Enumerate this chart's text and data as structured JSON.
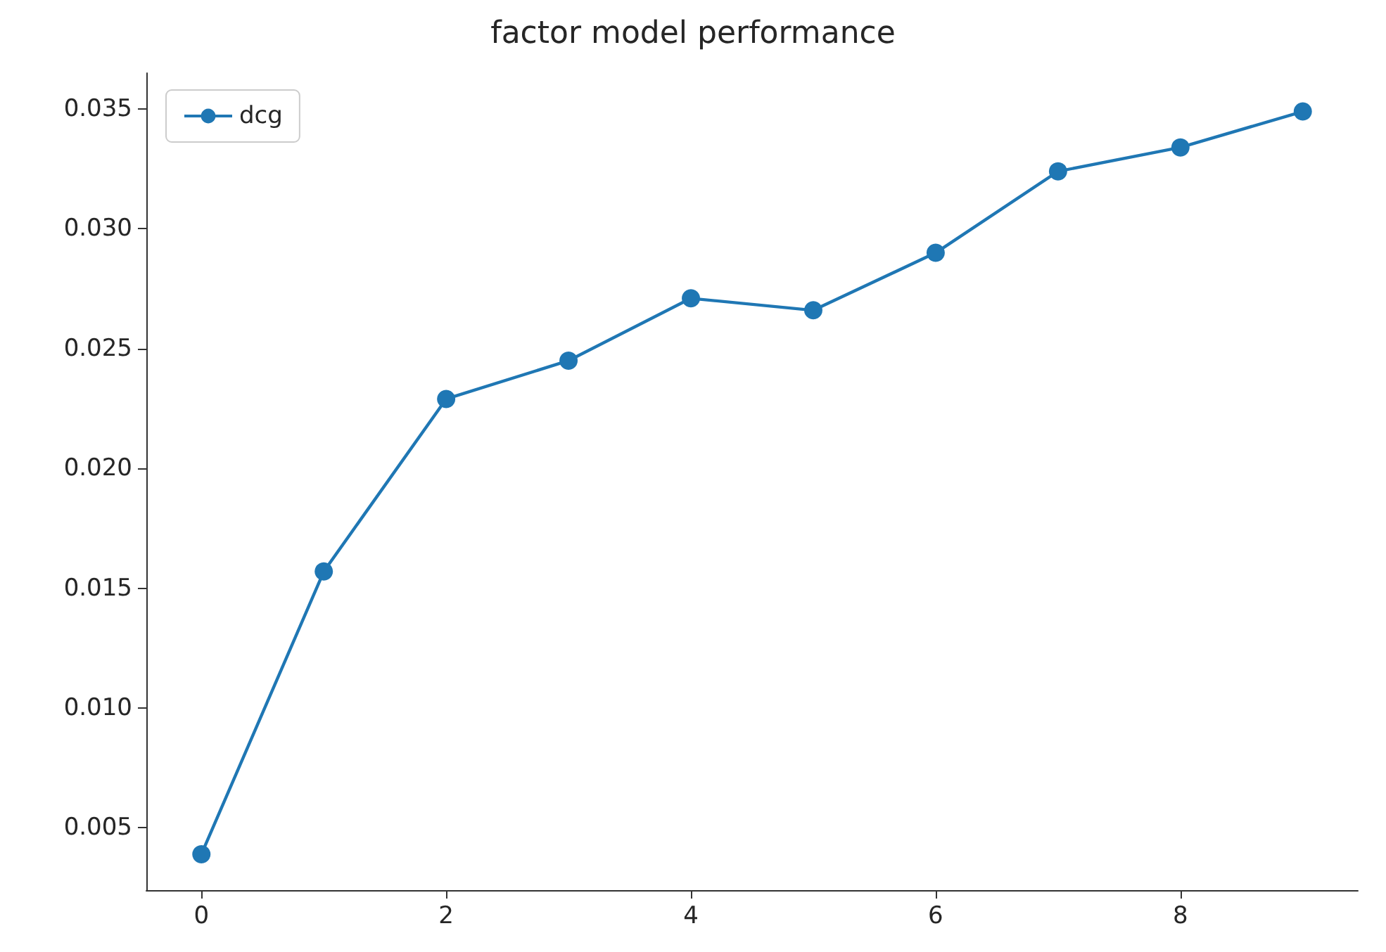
{
  "chart_data": {
    "type": "line",
    "title": "factor model performance",
    "x": [
      0,
      1,
      2,
      3,
      4,
      5,
      6,
      7,
      8,
      9
    ],
    "series": [
      {
        "name": "dcg",
        "color": "#1f77b4",
        "values": [
          0.0039,
          0.0157,
          0.0229,
          0.0245,
          0.0271,
          0.0266,
          0.029,
          0.0324,
          0.0334,
          0.0349
        ]
      }
    ],
    "xlim": [
      -0.45,
      9.45
    ],
    "xticks": [
      0,
      2,
      4,
      6,
      8
    ],
    "ylim": [
      0.0024,
      0.0365
    ],
    "yticks": [
      {
        "value": 0.005,
        "label": "0.005"
      },
      {
        "value": 0.01,
        "label": "0.010"
      },
      {
        "value": 0.015,
        "label": "0.015"
      },
      {
        "value": 0.02,
        "label": "0.020"
      },
      {
        "value": 0.025,
        "label": "0.025"
      },
      {
        "value": 0.03,
        "label": "0.030"
      },
      {
        "value": 0.035,
        "label": "0.035"
      }
    ],
    "grid": false,
    "legend": "top left",
    "marker": "circle",
    "line_style": "solid"
  }
}
